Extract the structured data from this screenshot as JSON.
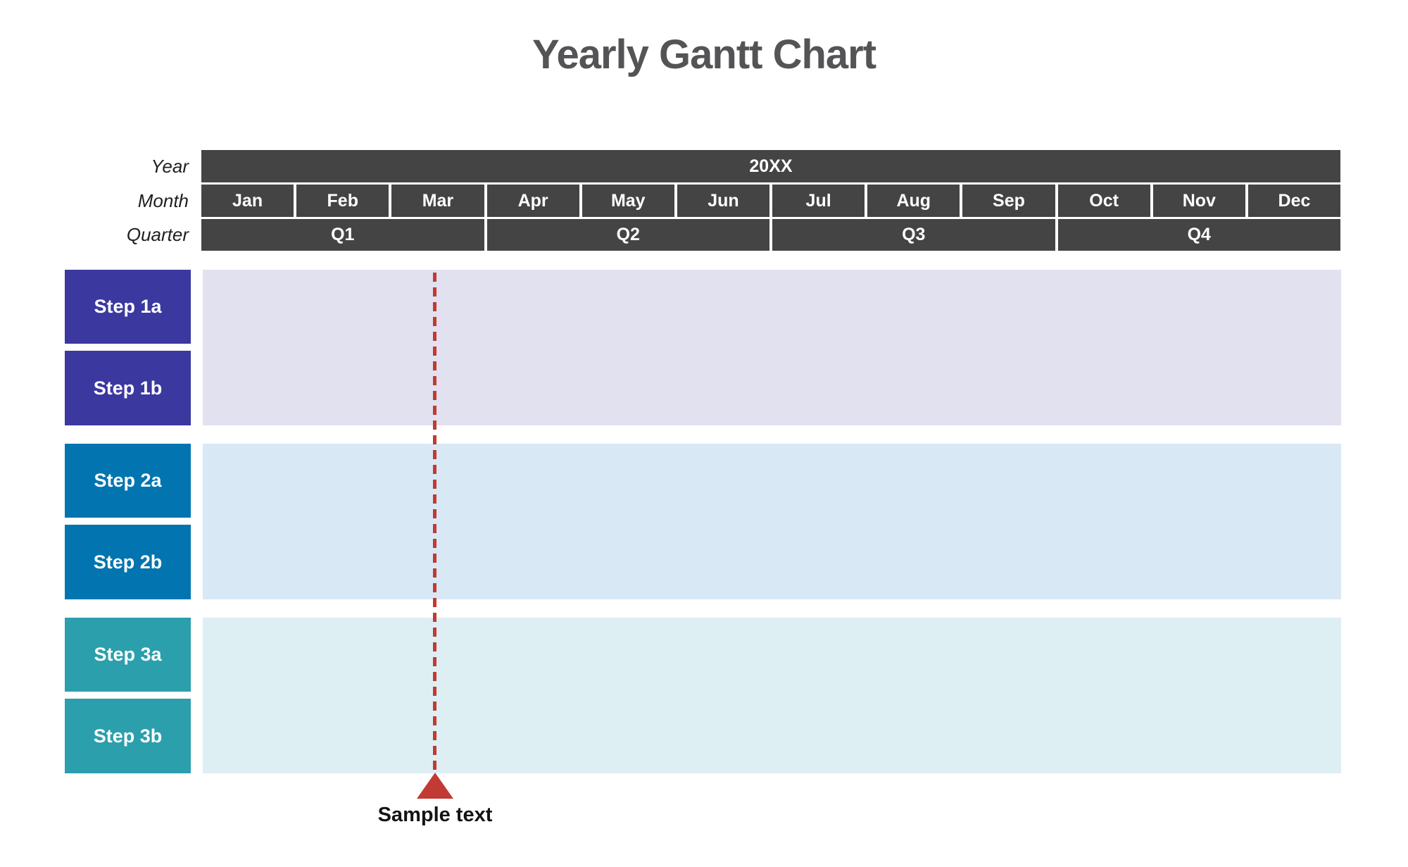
{
  "title": "Yearly Gantt Chart",
  "header": {
    "year_label": "Year",
    "month_label": "Month",
    "quarter_label": "Quarter",
    "year_value": "20XX",
    "months": [
      "Jan",
      "Feb",
      "Mar",
      "Apr",
      "May",
      "Jun",
      "Jul",
      "Aug",
      "Sep",
      "Oct",
      "Nov",
      "Dec"
    ],
    "quarters": [
      "Q1",
      "Q2",
      "Q3",
      "Q4"
    ]
  },
  "groups": [
    {
      "name": "group-1",
      "steps": [
        "Step 1a",
        "Step 1b"
      ]
    },
    {
      "name": "group-2",
      "steps": [
        "Step 2a",
        "Step 2b"
      ]
    },
    {
      "name": "group-3",
      "steps": [
        "Step 3a",
        "Step 3b"
      ]
    }
  ],
  "marker": {
    "label": "Sample text"
  },
  "colors": {
    "header_bg": "#444444",
    "step1": "#3B38A0",
    "step2": "#0274B0",
    "step3": "#2B9FAB",
    "track1": "#E2E1F0",
    "track2": "#D9E8F5",
    "track3": "#DEEFF4",
    "marker_red": "#C13A33",
    "title_gray": "#545457",
    "label_text": "#1F1F1F"
  },
  "chart_data": {
    "type": "gantt",
    "title": "Yearly Gantt Chart",
    "x_axis": {
      "year": "20XX",
      "months": [
        "Jan",
        "Feb",
        "Mar",
        "Apr",
        "May",
        "Jun",
        "Jul",
        "Aug",
        "Sep",
        "Oct",
        "Nov",
        "Dec"
      ],
      "quarters": [
        {
          "label": "Q1",
          "months": [
            "Jan",
            "Feb",
            "Mar"
          ]
        },
        {
          "label": "Q2",
          "months": [
            "Apr",
            "May",
            "Jun"
          ]
        },
        {
          "label": "Q3",
          "months": [
            "Jul",
            "Aug",
            "Sep"
          ]
        },
        {
          "label": "Q4",
          "months": [
            "Oct",
            "Nov",
            "Dec"
          ]
        }
      ]
    },
    "rows": [
      "Step 1a",
      "Step 1b",
      "Step 2a",
      "Step 2b",
      "Step 3a",
      "Step 3b"
    ],
    "row_groups": [
      {
        "rows": [
          "Step 1a",
          "Step 1b"
        ],
        "accent_color": "#3B38A0",
        "track_color": "#E2E1F0"
      },
      {
        "rows": [
          "Step 2a",
          "Step 2b"
        ],
        "accent_color": "#0274B0",
        "track_color": "#D9E8F5"
      },
      {
        "rows": [
          "Step 3a",
          "Step 3b"
        ],
        "accent_color": "#2B9FAB",
        "track_color": "#DEEFF4"
      }
    ],
    "bars": [],
    "marker": {
      "label": "Sample text",
      "position": "mid-March",
      "x_fraction_of_year": 0.205,
      "style": "vertical red dashed line with upward triangle below axis"
    },
    "notes": "Template Gantt chart: empty row tracks (no task bars drawn), dashed milestone marker line at mid-March."
  }
}
